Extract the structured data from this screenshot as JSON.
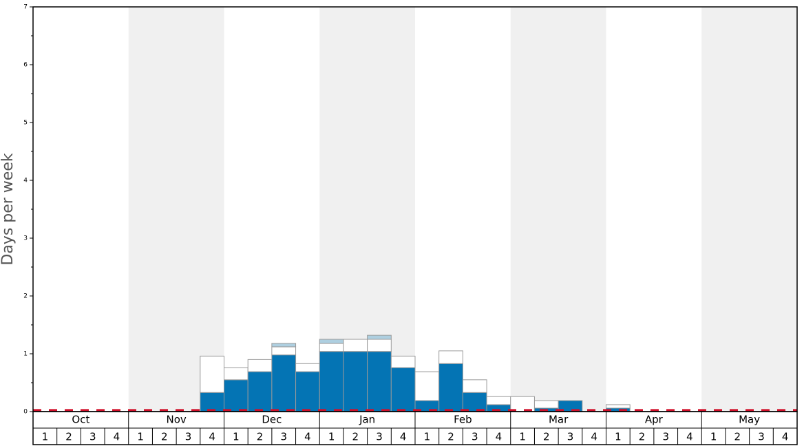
{
  "chart_data": {
    "type": "stacked-bar",
    "y_label": "Days per week",
    "months": [
      "Oct",
      "Nov",
      "Dec",
      "Jan",
      "Feb",
      "Mar",
      "Apr",
      "May"
    ],
    "categories": [
      "1",
      "2",
      "3",
      "4",
      "1",
      "2",
      "3",
      "4",
      "1",
      "2",
      "3",
      "4",
      "1",
      "2",
      "3",
      "4",
      "1",
      "2",
      "3",
      "4",
      "1",
      "2",
      "3",
      "4",
      "1",
      "2",
      "3",
      "4",
      "1",
      "2",
      "3",
      "4"
    ],
    "series": [
      {
        "color": "#0474b4",
        "values": [
          0,
          0,
          0,
          0,
          0,
          0,
          0,
          0.33,
          0.55,
          0.69,
          0.98,
          0.69,
          1.04,
          1.04,
          1.04,
          0.76,
          0.19,
          0.83,
          0.33,
          0.12,
          0,
          0.06,
          0.19,
          0,
          0.06,
          0,
          0,
          0,
          0,
          0,
          0,
          0
        ]
      },
      {
        "color": "#ffffff",
        "values": [
          0,
          0,
          0,
          0,
          0,
          0,
          0,
          0.63,
          0.21,
          0.21,
          0.14,
          0.14,
          0.14,
          0.21,
          0.21,
          0.2,
          0.5,
          0.22,
          0.22,
          0.14,
          0.26,
          0.13,
          0,
          0,
          0.06,
          0,
          0,
          0,
          0,
          0,
          0,
          0
        ]
      },
      {
        "color": "#aecfe0",
        "values": [
          0,
          0,
          0,
          0,
          0,
          0,
          0,
          0,
          0,
          0,
          0.06,
          0,
          0.07,
          0,
          0.07,
          0,
          0,
          0,
          0,
          0,
          0,
          0,
          0,
          0,
          0,
          0,
          0,
          0,
          0,
          0,
          0,
          0
        ]
      }
    ],
    "threshold": 0.02,
    "threshold_color": "#d0102a",
    "ylim": [
      0,
      7
    ],
    "yticks": [
      0,
      1,
      2,
      3,
      4,
      5,
      6,
      7
    ],
    "yminor": [
      0.5,
      1.5,
      2.5,
      3.5,
      4.5,
      5.5,
      6.5
    ]
  }
}
